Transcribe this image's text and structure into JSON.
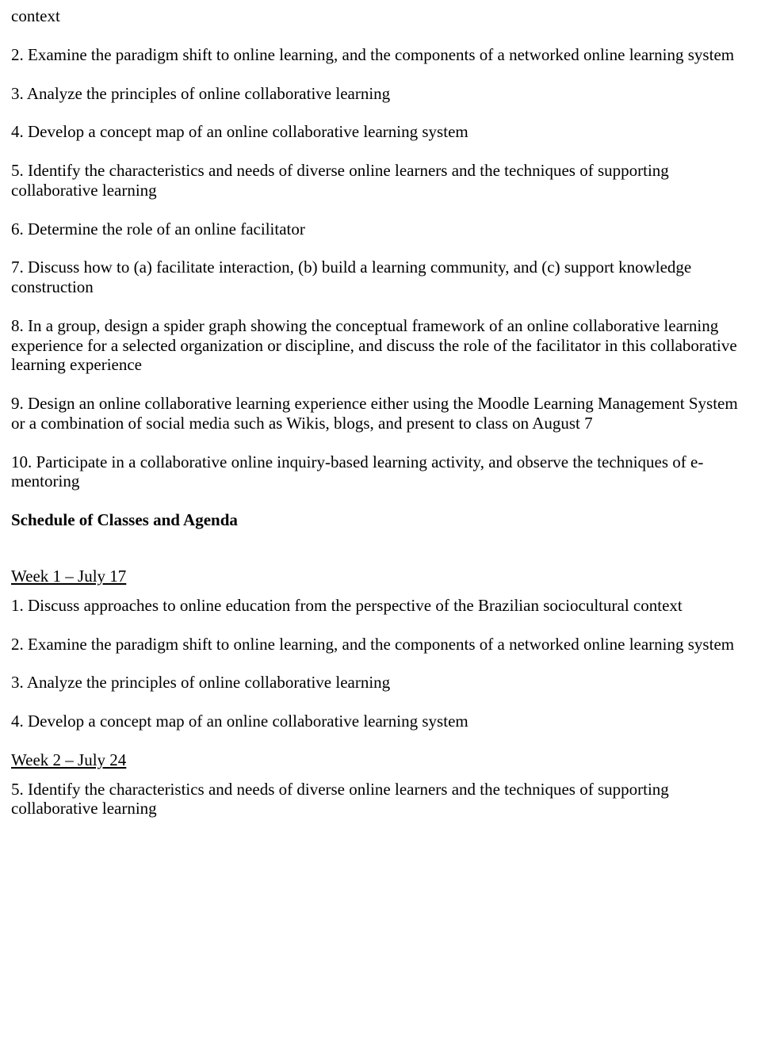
{
  "top": {
    "context": "context",
    "item2": "2. Examine the paradigm shift to online learning, and the components of a networked online learning system",
    "item3": "3. Analyze the principles of online collaborative learning",
    "item4": "4. Develop a concept map of an online collaborative learning system",
    "item5": "5. Identify the characteristics and needs of diverse online learners and the techniques of supporting collaborative learning",
    "item6": "6. Determine the role of an online facilitator",
    "item7": "7. Discuss how to (a) facilitate interaction, (b) build a learning community, and (c) support knowledge construction",
    "item8": "8. In a group, design a spider graph showing the conceptual framework of an online collaborative learning experience for a selected organization or discipline, and discuss the role of the facilitator in this collaborative learning experience",
    "item9": "9. Design an online collaborative learning experience either using the Moodle Learning Management System or a combination of social media such as Wikis, blogs, and present to class on August 7",
    "item10": "10. Participate in a collaborative online inquiry-based learning activity, and observe the techniques of e-mentoring"
  },
  "schedule": {
    "heading": "Schedule of Classes and Agenda",
    "week1": {
      "title": "Week 1 – July 17",
      "item1": "1. Discuss approaches to online education from the perspective of the Brazilian sociocultural context",
      "item2": "2. Examine the paradigm shift to online learning, and the components of a networked online learning system",
      "item3": "3. Analyze the principles of online collaborative learning",
      "item4": "4. Develop a concept map of an online collaborative learning system"
    },
    "week2": {
      "title": "Week 2 – July 24",
      "item5": "5. Identify the characteristics and needs of diverse online learners and the techniques of supporting collaborative learning"
    }
  }
}
